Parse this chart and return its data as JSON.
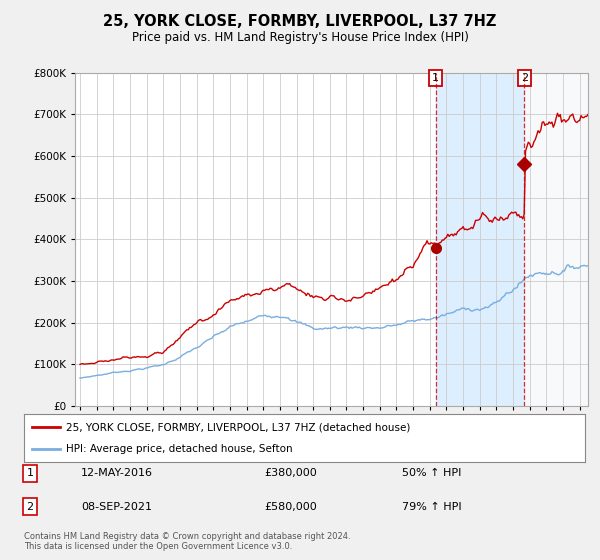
{
  "title": "25, YORK CLOSE, FORMBY, LIVERPOOL, L37 7HZ",
  "subtitle": "Price paid vs. HM Land Registry's House Price Index (HPI)",
  "legend_line1": "25, YORK CLOSE, FORMBY, LIVERPOOL, L37 7HZ (detached house)",
  "legend_line2": "HPI: Average price, detached house, Sefton",
  "footer": "Contains HM Land Registry data © Crown copyright and database right 2024.\nThis data is licensed under the Open Government Licence v3.0.",
  "sale1_date": "12-MAY-2016",
  "sale1_price": 380000,
  "sale1_pct": "50% ↑ HPI",
  "sale2_date": "08-SEP-2021",
  "sale2_price": 580000,
  "sale2_pct": "79% ↑ HPI",
  "sale1_year": 2016.36,
  "sale2_year": 2021.67,
  "red_color": "#cc0000",
  "blue_color": "#7aade0",
  "shade_color": "#ddeeff",
  "vline_color": "#cc0000",
  "marker_color": "#aa0000",
  "ylim": [
    0,
    800000
  ],
  "xlim_left": 1994.7,
  "xlim_right": 2025.5,
  "bg_color": "#f0f0f0",
  "plot_bg_color": "#ffffff"
}
